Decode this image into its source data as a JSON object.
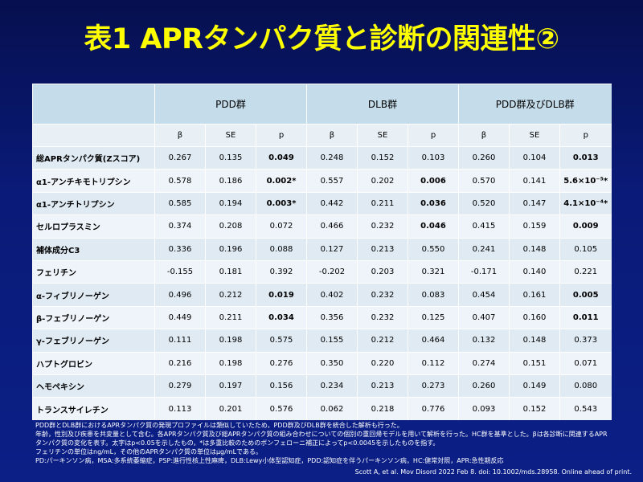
{
  "title": "表1 APRタンパク質と診断の関連性②",
  "groups": [
    "PDD群",
    "DLB群",
    "PDD群及びDLB群"
  ],
  "subheaders": [
    "β",
    "SE",
    "p",
    "β",
    "SE",
    "p",
    "β",
    "SE",
    "p"
  ],
  "rows": [
    {
      "label": "総APRタンパク質(Zスコア)",
      "cells": [
        "0.267",
        "0.135",
        "0.049",
        "0.248",
        "0.152",
        "0.103",
        "0.260",
        "0.104",
        "0.013"
      ],
      "bold": [
        false,
        false,
        true,
        false,
        false,
        false,
        false,
        false,
        true
      ]
    },
    {
      "label": "α1-アンチキモトリプシン",
      "cells": [
        "0.578",
        "0.186",
        "0.002*",
        "0.557",
        "0.202",
        "0.006",
        "0.570",
        "0.141",
        "5.6×10⁻⁵*"
      ],
      "bold": [
        false,
        false,
        true,
        false,
        false,
        true,
        false,
        false,
        true
      ]
    },
    {
      "label": "α1-アンチトリプシン",
      "cells": [
        "0.585",
        "0.194",
        "0.003*",
        "0.442",
        "0.211",
        "0.036",
        "0.520",
        "0.147",
        "4.1×10⁻⁴*"
      ],
      "bold": [
        false,
        false,
        true,
        false,
        false,
        true,
        false,
        false,
        true
      ]
    },
    {
      "label": "セルロプラスミン",
      "cells": [
        "0.374",
        "0.208",
        "0.072",
        "0.466",
        "0.232",
        "0.046",
        "0.415",
        "0.159",
        "0.009"
      ],
      "bold": [
        false,
        false,
        false,
        false,
        false,
        true,
        false,
        false,
        true
      ]
    },
    {
      "label": "補体成分C3",
      "cells": [
        "0.336",
        "0.196",
        "0.088",
        "0.127",
        "0.213",
        "0.550",
        "0.241",
        "0.148",
        "0.105"
      ],
      "bold": [
        false,
        false,
        false,
        false,
        false,
        false,
        false,
        false,
        false
      ]
    },
    {
      "label": "フェリチン",
      "cells": [
        "-0.155",
        "0.181",
        "0.392",
        "-0.202",
        "0.203",
        "0.321",
        "-0.171",
        "0.140",
        "0.221"
      ],
      "bold": [
        false,
        false,
        false,
        false,
        false,
        false,
        false,
        false,
        false
      ]
    },
    {
      "label": "α-フィブリノーゲン",
      "cells": [
        "0.496",
        "0.212",
        "0.019",
        "0.402",
        "0.232",
        "0.083",
        "0.454",
        "0.161",
        "0.005"
      ],
      "bold": [
        false,
        false,
        true,
        false,
        false,
        false,
        false,
        false,
        true
      ]
    },
    {
      "label": "β-フェブリノーゲン",
      "cells": [
        "0.449",
        "0.211",
        "0.034",
        "0.356",
        "0.232",
        "0.125",
        "0.407",
        "0.160",
        "0.011"
      ],
      "bold": [
        false,
        false,
        true,
        false,
        false,
        false,
        false,
        false,
        true
      ]
    },
    {
      "label": "γ-フェブリノーゲン",
      "cells": [
        "0.111",
        "0.198",
        "0.575",
        "0.155",
        "0.212",
        "0.464",
        "0.132",
        "0.148",
        "0.373"
      ],
      "bold": [
        false,
        false,
        false,
        false,
        false,
        false,
        false,
        false,
        false
      ]
    },
    {
      "label": "ハプトグロビン",
      "cells": [
        "0.216",
        "0.198",
        "0.276",
        "0.350",
        "0.220",
        "0.112",
        "0.274",
        "0.151",
        "0.071"
      ],
      "bold": [
        false,
        false,
        false,
        false,
        false,
        false,
        false,
        false,
        false
      ]
    },
    {
      "label": "ヘモペキシン",
      "cells": [
        "0.279",
        "0.197",
        "0.156",
        "0.234",
        "0.213",
        "0.273",
        "0.260",
        "0.149",
        "0.080"
      ],
      "bold": [
        false,
        false,
        false,
        false,
        false,
        false,
        false,
        false,
        false
      ]
    },
    {
      "label": "トランスサイレチン",
      "cells": [
        "0.113",
        "0.201",
        "0.576",
        "0.062",
        "0.218",
        "0.776",
        "0.093",
        "0.152",
        "0.543"
      ],
      "bold": [
        false,
        false,
        false,
        false,
        false,
        false,
        false,
        false,
        false
      ]
    }
  ],
  "notes": [
    "PDD群とDLB群におけるAPRタンパク質の発現プロファイルは類似していたため，PDD群及びDLB群を統合した解析も行った。",
    "年齢，性別及び疾患を共変量として含む。各APRタンパク質及び総APRタンパク質の組み合わせについての個別の重回帰モデルを用いて解析を行った。HC群を基準とした。βは各診断に関連するAPRタンパク質の変化を表す。太字はp<0.05を示したもの，*は多重比較のためのボンフェローニ補正によってp<0.0045を示したものを指す。",
    "フェリチンの単位はng/mL，その他のAPRタンパク質の単位はμg/mLである。",
    "PD:パーキンソン病，MSA:多系統萎縮症，PSP:進行性核上性麻痺，DLB:Lewy小体型認知症，PDD:認知症を伴うパーキンソン病，HC:健常対照，APR:急性期反応"
  ],
  "citation": "Scott A, et al. Mov Disord 2022 Feb 8. doi: 10.1002/mds.28958. Online ahead of print."
}
